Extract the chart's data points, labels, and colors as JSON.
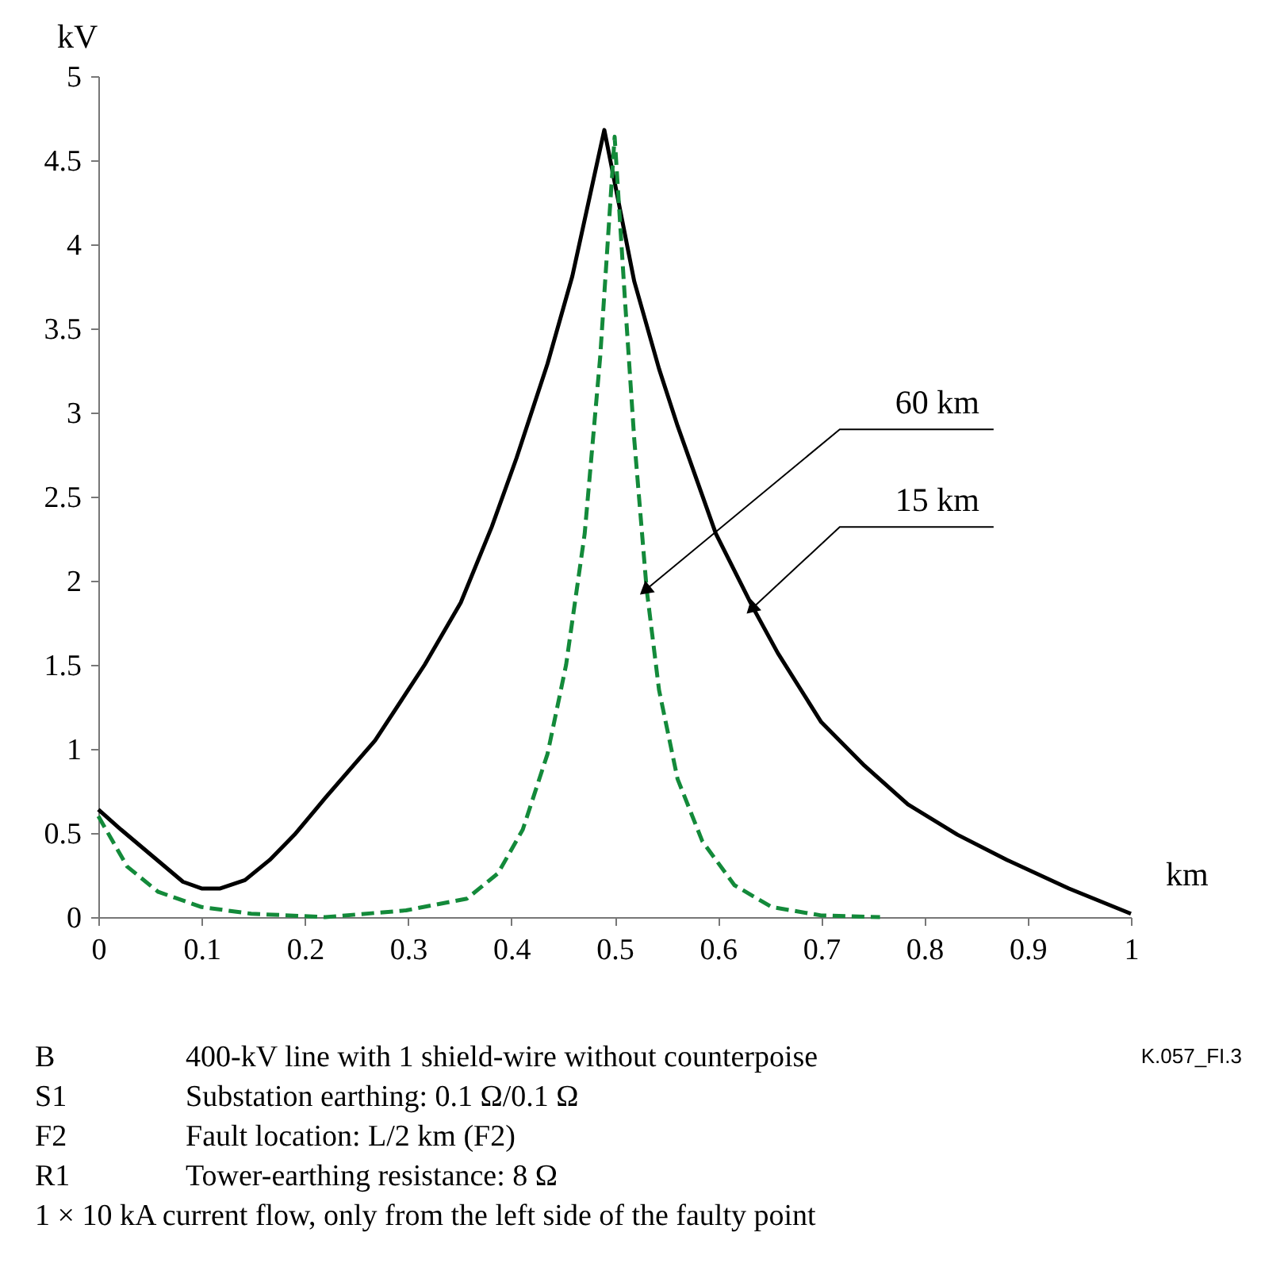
{
  "chart_data": {
    "type": "line",
    "xlabel": "km",
    "ylabel": "kV",
    "xlim": [
      0,
      1
    ],
    "xticks": [
      0,
      0.1,
      0.2,
      0.3,
      0.4,
      0.5,
      0.6,
      0.7,
      0.8,
      0.9,
      1
    ],
    "ylim": [
      0,
      5
    ],
    "yticks": [
      0,
      0.5,
      1,
      1.5,
      2,
      2.5,
      3,
      3.5,
      4,
      4.5,
      5
    ],
    "grid": false,
    "marker": "none",
    "series": [
      {
        "color": "#000000",
        "line_style": "solid",
        "x": [
          0,
          0.022,
          0.082,
          0.1,
          0.118,
          0.142,
          0.166,
          0.19,
          0.22,
          0.268,
          0.316,
          0.351,
          0.381,
          0.405,
          0.435,
          0.459,
          0.49,
          0.519,
          0.543,
          0.561,
          0.598,
          0.634,
          0.658,
          0.7,
          0.742,
          0.784,
          0.832,
          0.88,
          0.94,
          1.0
        ],
        "values": [
          0.64,
          0.52,
          0.21,
          0.17,
          0.17,
          0.22,
          0.34,
          0.49,
          0.71,
          1.05,
          1.5,
          1.87,
          2.32,
          2.73,
          3.29,
          3.81,
          4.68,
          3.78,
          3.26,
          2.92,
          2.28,
          1.84,
          1.57,
          1.16,
          0.9,
          0.67,
          0.49,
          0.34,
          0.17,
          0.02
        ]
      },
      {
        "color": "#138a3a",
        "line_style": "dashed",
        "x": [
          0,
          0.028,
          0.058,
          0.1,
          0.148,
          0.22,
          0.298,
          0.357,
          0.387,
          0.411,
          0.435,
          0.453,
          0.471,
          0.486,
          0.5,
          0.51,
          0.519,
          0.531,
          0.543,
          0.561,
          0.585,
          0.616,
          0.652,
          0.7,
          0.757
        ],
        "values": [
          0.6,
          0.3,
          0.15,
          0.06,
          0.02,
          0.0,
          0.04,
          0.11,
          0.26,
          0.52,
          0.97,
          1.5,
          2.28,
          3.33,
          4.64,
          3.67,
          2.84,
          1.95,
          1.35,
          0.82,
          0.45,
          0.19,
          0.06,
          0.01,
          0.0
        ]
      }
    ],
    "annotations": [
      {
        "text": "60 km",
        "x": 0.531,
        "y": 1.95
      },
      {
        "text": "15 km",
        "x": 0.634,
        "y": 1.84
      },
      "B\t400-kV line with 1 shield-wire without counterpoise",
      "S1\tSubstation earthing: 0.1 Ω/0.1 Ω",
      "F2\tFault location: L/2 km (F2)",
      "R1\tTower-earthing resistance: 8 Ω",
      "1 × 10 kA current flow, only from the left side of the faulty point",
      "K.057_FI.3"
    ]
  }
}
